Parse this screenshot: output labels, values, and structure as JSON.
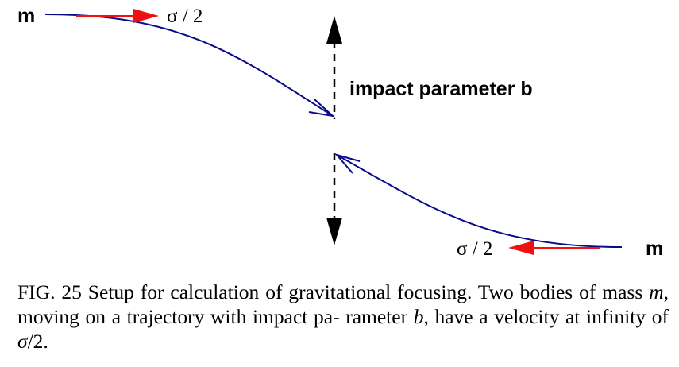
{
  "diagram": {
    "mass_label_left": "m",
    "mass_label_right": "m",
    "velocity_label_left": "σ / 2",
    "velocity_label_right": "σ / 2",
    "impact_label": "impact parameter b",
    "colors": {
      "trajectory": "#0a0a8c",
      "velocity_arrow": "#ee1111",
      "axis": "#000000"
    }
  },
  "caption": {
    "part1": "FIG. 25 Setup for calculation of gravitational focusing. Two bodies of mass ",
    "var_m": "m",
    "part2": ", moving on a trajectory with impact pa- rameter ",
    "var_b": "b",
    "part3": ", have a velocity at infinity of ",
    "var_sigma": "σ",
    "part4": "/2."
  }
}
